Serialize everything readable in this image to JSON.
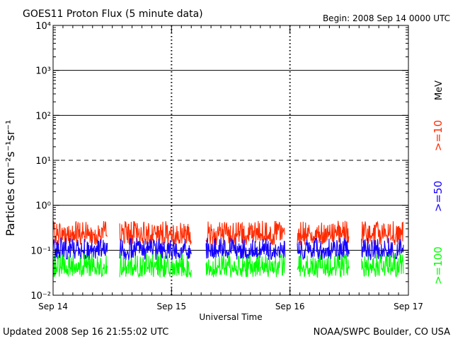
{
  "chart_data": {
    "type": "line",
    "title": "GOES11 Proton Flux (5 minute data)",
    "begin_label": "Begin: 2008 Sep 14 0000 UTC",
    "xlabel": "Universal Time",
    "ylabel": "Particles cm⁻²s⁻¹sr⁻¹",
    "y_scale": "log",
    "ylim": [
      0.01,
      10000
    ],
    "x_range_hours": [
      0,
      72
    ],
    "x_ticks": [
      {
        "hour": 0,
        "label": "Sep 14"
      },
      {
        "hour": 24,
        "label": "Sep 15"
      },
      {
        "hour": 48,
        "label": "Sep 16"
      },
      {
        "hour": 72,
        "label": "Sep 17"
      }
    ],
    "y_ticks": [
      {
        "exp": -2,
        "label": "10⁻²"
      },
      {
        "exp": -1,
        "label": "10⁻¹"
      },
      {
        "exp": 0,
        "label": "10⁰"
      },
      {
        "exp": 1,
        "label": "10¹"
      },
      {
        "exp": 2,
        "label": "10²"
      },
      {
        "exp": 3,
        "label": "10³"
      },
      {
        "exp": 4,
        "label": "10⁴"
      }
    ],
    "threshold_lines": [
      {
        "value": 1000,
        "style": "solid"
      },
      {
        "value": 100,
        "style": "solid"
      },
      {
        "value": 10,
        "style": "dashed"
      },
      {
        "value": 1,
        "style": "solid"
      },
      {
        "value": 0.1,
        "style": "solid"
      }
    ],
    "data_segments_hours": [
      [
        0,
        11
      ],
      [
        13.5,
        28
      ],
      [
        31,
        47
      ],
      [
        49.5,
        60
      ],
      [
        62.5,
        71
      ]
    ],
    "legend_unit": "MeV",
    "series": [
      {
        "name": ">=10",
        "color": "#ff2a00",
        "typical": 0.22,
        "range": [
          0.13,
          0.45
        ]
      },
      {
        "name": ">=50",
        "color": "#1400ff",
        "typical": 0.1,
        "range": [
          0.06,
          0.19
        ]
      },
      {
        "name": ">=100",
        "color": "#00ff00",
        "typical": 0.045,
        "range": [
          0.025,
          0.085
        ]
      }
    ]
  },
  "footer": {
    "updated": "Updated 2008 Sep 16 21:55:02 UTC",
    "credit": "NOAA/SWPC Boulder, CO USA"
  }
}
